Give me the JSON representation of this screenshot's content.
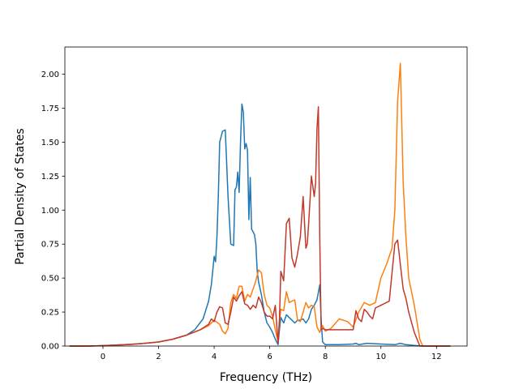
{
  "chart_data": {
    "type": "line",
    "title": "",
    "xlabel": "Frequency (THz)",
    "ylabel": "Partial Density of States",
    "xlim": [
      -1.37,
      13.1
    ],
    "ylim": [
      0.0,
      2.2
    ],
    "xticks": [
      0,
      2,
      4,
      6,
      8,
      10,
      12
    ],
    "yticks": [
      0.0,
      0.25,
      0.5,
      0.75,
      1.0,
      1.25,
      1.5,
      1.75,
      2.0
    ],
    "xtick_labels": [
      "0",
      "2",
      "4",
      "6",
      "8",
      "10",
      "12"
    ],
    "ytick_labels": [
      "0.00",
      "0.25",
      "0.50",
      "0.75",
      "1.00",
      "1.25",
      "1.50",
      "1.75",
      "2.00"
    ],
    "grid": false,
    "legend": "none",
    "series": [
      {
        "color": "#1f77b4",
        "x": [
          -1.2,
          -0.5,
          0,
          0.5,
          1,
          1.5,
          2,
          2.5,
          3,
          3.3,
          3.6,
          3.8,
          3.9,
          4.0,
          4.05,
          4.1,
          4.15,
          4.2,
          4.3,
          4.4,
          4.5,
          4.6,
          4.7,
          4.75,
          4.8,
          4.85,
          4.9,
          4.95,
          5.0,
          5.05,
          5.1,
          5.15,
          5.2,
          5.25,
          5.3,
          5.35,
          5.4,
          5.45,
          5.5,
          5.55,
          5.6,
          5.7,
          5.8,
          5.9,
          6.0,
          6.1,
          6.2,
          6.3,
          6.35,
          6.4,
          6.5,
          6.6,
          6.7,
          6.8,
          6.9,
          7.0,
          7.1,
          7.2,
          7.3,
          7.4,
          7.5,
          7.6,
          7.7,
          7.8,
          7.85,
          7.9,
          8.0,
          8.5,
          9.0,
          9.1,
          9.2,
          9.5,
          10.0,
          10.5,
          10.7,
          10.9,
          11.2,
          11.5,
          12.5
        ],
        "y": [
          0.0,
          0.0,
          0.003,
          0.008,
          0.013,
          0.02,
          0.03,
          0.05,
          0.08,
          0.12,
          0.2,
          0.33,
          0.45,
          0.66,
          0.62,
          0.8,
          1.1,
          1.5,
          1.58,
          1.59,
          1.1,
          0.75,
          0.74,
          1.15,
          1.17,
          1.28,
          1.13,
          1.5,
          1.78,
          1.72,
          1.45,
          1.49,
          1.44,
          0.93,
          1.24,
          0.86,
          0.84,
          0.82,
          0.75,
          0.55,
          0.47,
          0.38,
          0.25,
          0.17,
          0.14,
          0.1,
          0.05,
          0.01,
          0.12,
          0.21,
          0.17,
          0.23,
          0.21,
          0.19,
          0.17,
          0.19,
          0.19,
          0.2,
          0.17,
          0.2,
          0.27,
          0.3,
          0.34,
          0.45,
          0.2,
          0.03,
          0.01,
          0.01,
          0.015,
          0.02,
          0.01,
          0.02,
          0.015,
          0.01,
          0.02,
          0.01,
          0.005,
          0.0,
          0.0
        ]
      },
      {
        "color": "#ff7f0e",
        "x": [
          -1.2,
          -0.5,
          0,
          0.5,
          1,
          1.5,
          2,
          2.5,
          3,
          3.5,
          3.8,
          4.0,
          4.2,
          4.3,
          4.4,
          4.5,
          4.6,
          4.7,
          4.8,
          4.9,
          5.0,
          5.1,
          5.2,
          5.3,
          5.4,
          5.5,
          5.6,
          5.7,
          5.8,
          5.9,
          6.0,
          6.1,
          6.2,
          6.3,
          6.35,
          6.4,
          6.5,
          6.6,
          6.7,
          6.8,
          6.9,
          7.0,
          7.1,
          7.2,
          7.3,
          7.4,
          7.5,
          7.6,
          7.7,
          7.8,
          7.9,
          8.0,
          8.2,
          8.5,
          8.8,
          9.0,
          9.2,
          9.4,
          9.6,
          9.8,
          10.0,
          10.2,
          10.4,
          10.5,
          10.6,
          10.7,
          10.8,
          10.9,
          11.0,
          11.2,
          11.4,
          11.5,
          12.5
        ],
        "y": [
          0.0,
          0.0,
          0.003,
          0.007,
          0.012,
          0.02,
          0.03,
          0.05,
          0.08,
          0.12,
          0.15,
          0.19,
          0.16,
          0.11,
          0.09,
          0.13,
          0.32,
          0.38,
          0.35,
          0.44,
          0.44,
          0.33,
          0.38,
          0.36,
          0.42,
          0.48,
          0.56,
          0.54,
          0.38,
          0.3,
          0.28,
          0.22,
          0.12,
          0.03,
          0.18,
          0.27,
          0.26,
          0.4,
          0.32,
          0.33,
          0.34,
          0.19,
          0.18,
          0.25,
          0.32,
          0.28,
          0.3,
          0.29,
          0.14,
          0.1,
          0.15,
          0.11,
          0.13,
          0.2,
          0.18,
          0.14,
          0.25,
          0.32,
          0.3,
          0.32,
          0.5,
          0.6,
          0.72,
          1.0,
          1.8,
          2.08,
          1.2,
          0.8,
          0.5,
          0.3,
          0.05,
          0.0,
          0.0
        ]
      },
      {
        "color": "#c0392b",
        "x": [
          -1.2,
          -0.5,
          0,
          0.5,
          1,
          1.5,
          2,
          2.5,
          3,
          3.5,
          3.8,
          3.9,
          4.0,
          4.1,
          4.2,
          4.3,
          4.4,
          4.5,
          4.6,
          4.7,
          4.8,
          4.9,
          5.0,
          5.1,
          5.2,
          5.3,
          5.4,
          5.5,
          5.6,
          5.7,
          5.8,
          5.9,
          6.0,
          6.1,
          6.2,
          6.3,
          6.35,
          6.4,
          6.5,
          6.6,
          6.7,
          6.8,
          6.9,
          7.0,
          7.1,
          7.2,
          7.3,
          7.35,
          7.4,
          7.5,
          7.6,
          7.65,
          7.7,
          7.75,
          7.8,
          7.85,
          7.9,
          8.0,
          8.5,
          9.0,
          9.1,
          9.2,
          9.3,
          9.4,
          9.5,
          9.6,
          9.7,
          9.8,
          10.0,
          10.3,
          10.5,
          10.6,
          10.7,
          10.8,
          10.9,
          11.0,
          11.2,
          11.4,
          11.5,
          12.5
        ],
        "y": [
          0.0,
          0.0,
          0.003,
          0.007,
          0.012,
          0.02,
          0.03,
          0.05,
          0.08,
          0.12,
          0.16,
          0.2,
          0.18,
          0.25,
          0.29,
          0.28,
          0.17,
          0.16,
          0.25,
          0.36,
          0.33,
          0.37,
          0.4,
          0.31,
          0.3,
          0.27,
          0.3,
          0.28,
          0.36,
          0.32,
          0.25,
          0.22,
          0.22,
          0.2,
          0.3,
          0.02,
          0.2,
          0.55,
          0.48,
          0.9,
          0.94,
          0.65,
          0.58,
          0.68,
          0.8,
          1.1,
          0.72,
          0.75,
          0.9,
          1.25,
          1.1,
          1.2,
          1.6,
          1.76,
          0.8,
          0.12,
          0.13,
          0.12,
          0.12,
          0.12,
          0.26,
          0.2,
          0.18,
          0.27,
          0.25,
          0.22,
          0.2,
          0.28,
          0.3,
          0.33,
          0.75,
          0.78,
          0.6,
          0.42,
          0.35,
          0.25,
          0.1,
          0.0,
          0.0,
          0.0
        ]
      }
    ]
  }
}
